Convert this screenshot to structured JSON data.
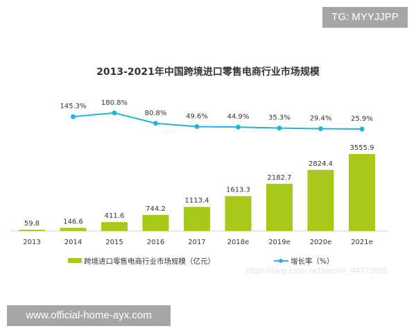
{
  "overlay": {
    "tg_label": "TG: MYYJJPP",
    "site_label": "www.official-home-ayx.com",
    "csdn_watermark": "https://blog.csdn.net/weixin_44773695"
  },
  "chart_data": {
    "type": "bar+line",
    "title": "2013-2021年中国跨境进口零售电商行业市场规模",
    "categories": [
      "2013",
      "2014",
      "2015",
      "2016",
      "2017",
      "2018e",
      "2019e",
      "2020e",
      "2021e"
    ],
    "series": [
      {
        "name": "跨境进口零售电商行业市场规模（亿元）",
        "type": "bar",
        "color": "#a7c91b",
        "values": [
          59.8,
          146.6,
          411.6,
          744.2,
          1113.4,
          1613.3,
          2182.7,
          2824.4,
          3555.9
        ],
        "labels": [
          "59.8",
          "146.6",
          "411.6",
          "744.2",
          "1113.4",
          "1613.3",
          "2182.7",
          "2824.4",
          "3555.9"
        ]
      },
      {
        "name": "增长率（%）",
        "type": "line",
        "color": "#1fb4e0",
        "values": [
          null,
          145.3,
          180.8,
          80.8,
          49.6,
          44.9,
          35.3,
          29.4,
          25.9
        ],
        "labels": [
          "",
          "145.3%",
          "180.8%",
          "80.8%",
          "49.6%",
          "44.9%",
          "35.3%",
          "29.4%",
          "25.9%"
        ]
      }
    ],
    "legend": "bottom",
    "grid": false
  }
}
